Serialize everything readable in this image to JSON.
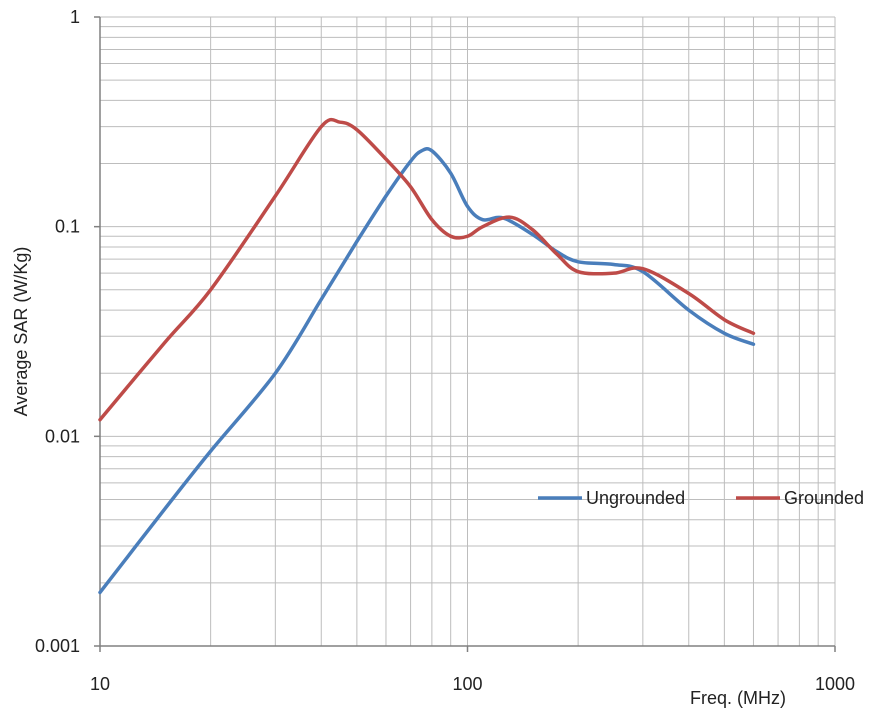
{
  "chart_data": {
    "type": "line",
    "title": "",
    "xlabel": "Freq. (MHz)",
    "ylabel": "Average SAR (W/Kg)",
    "xscale": "log",
    "yscale": "log",
    "xlim": [
      10,
      1000
    ],
    "ylim": [
      0.001,
      1
    ],
    "x_tick_labels": [
      "10",
      "100",
      "1000"
    ],
    "y_tick_labels": [
      "0.001",
      "0.01",
      "0.1",
      "1"
    ],
    "grid": true,
    "legend_position": "lower-right",
    "series": [
      {
        "name": "Ungrounded",
        "color": "#4a7ebb",
        "points": [
          [
            10,
            0.0018
          ],
          [
            15,
            0.0045
          ],
          [
            20,
            0.0085
          ],
          [
            30,
            0.02
          ],
          [
            40,
            0.045
          ],
          [
            50,
            0.085
          ],
          [
            60,
            0.14
          ],
          [
            70,
            0.205
          ],
          [
            75,
            0.23
          ],
          [
            80,
            0.23
          ],
          [
            90,
            0.18
          ],
          [
            100,
            0.125
          ],
          [
            110,
            0.108
          ],
          [
            125,
            0.11
          ],
          [
            150,
            0.092
          ],
          [
            175,
            0.076
          ],
          [
            200,
            0.068
          ],
          [
            250,
            0.066
          ],
          [
            300,
            0.061
          ],
          [
            400,
            0.04
          ],
          [
            500,
            0.031
          ],
          [
            600,
            0.0275
          ]
        ]
      },
      {
        "name": "Grounded",
        "color": "#be4b48",
        "points": [
          [
            10,
            0.012
          ],
          [
            15,
            0.028
          ],
          [
            20,
            0.05
          ],
          [
            30,
            0.14
          ],
          [
            40,
            0.3
          ],
          [
            45,
            0.315
          ],
          [
            50,
            0.29
          ],
          [
            60,
            0.21
          ],
          [
            70,
            0.155
          ],
          [
            80,
            0.108
          ],
          [
            90,
            0.09
          ],
          [
            100,
            0.09
          ],
          [
            110,
            0.1
          ],
          [
            130,
            0.111
          ],
          [
            150,
            0.097
          ],
          [
            175,
            0.074
          ],
          [
            200,
            0.061
          ],
          [
            250,
            0.06
          ],
          [
            300,
            0.063
          ],
          [
            400,
            0.048
          ],
          [
            500,
            0.036
          ],
          [
            600,
            0.031
          ]
        ]
      }
    ]
  }
}
